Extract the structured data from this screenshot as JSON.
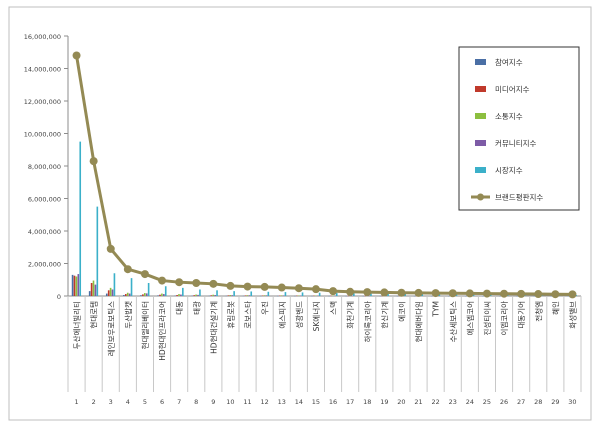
{
  "chart_data": {
    "type": "bar",
    "title": "",
    "xlabel": "",
    "ylabel": "",
    "ylim": [
      0,
      16000000
    ],
    "yticks": [
      0,
      2000000,
      4000000,
      6000000,
      8000000,
      10000000,
      12000000,
      14000000,
      16000000
    ],
    "ytick_labels": [
      "0",
      "2,000,000",
      "4,000,000",
      "6,000,000",
      "8,000,000",
      "10,000,000",
      "12,000,000",
      "14,000,000",
      "16,000,000"
    ],
    "grid": false,
    "legend_position": "top-right",
    "rank_labels": [
      "1",
      "2",
      "3",
      "4",
      "5",
      "6",
      "7",
      "8",
      "9",
      "10",
      "11",
      "12",
      "13",
      "14",
      "15",
      "16",
      "17",
      "18",
      "19",
      "20",
      "21",
      "22",
      "23",
      "24",
      "25",
      "26",
      "27",
      "28",
      "29",
      "30"
    ],
    "categories": [
      "두산에너빌리티",
      "현대로템",
      "레인보우로보틱스",
      "두산밥캣",
      "현대엘리베이터",
      "HD현대인프라코어",
      "대동",
      "태광",
      "HD현대건설기계",
      "휴림로봇",
      "로보스타",
      "우진",
      "에스피지",
      "성광벤드",
      "SK에너지",
      "스맥",
      "화천기계",
      "하이록코리아",
      "한신기계",
      "에코이",
      "현대에버다임",
      "TYM",
      "수산세보틱스",
      "에스엠코어",
      "진성티이씨",
      "이엠코리아",
      "대동기어",
      "전청엠",
      "혜인",
      "화성밸브"
    ],
    "series": [
      {
        "name": "참여지수",
        "kind": "bar",
        "color": "#4a6fa5",
        "values": [
          1300000,
          300000,
          150000,
          60000,
          50000,
          40000,
          30000,
          25000,
          20000,
          18000,
          15000,
          12000,
          10000,
          9000,
          8000,
          7000,
          6000,
          5000,
          5000,
          4000,
          4000,
          3000,
          3000,
          3000,
          2500,
          2500,
          2000,
          2000,
          2000,
          1500
        ]
      },
      {
        "name": "미디어지수",
        "kind": "bar",
        "color": "#c0392b",
        "values": [
          1250000,
          800000,
          350000,
          120000,
          100000,
          80000,
          60000,
          50000,
          45000,
          40000,
          35000,
          30000,
          25000,
          22000,
          20000,
          18000,
          15000,
          13000,
          12000,
          11000,
          10000,
          9000,
          8000,
          7000,
          6000,
          5500,
          5000,
          4500,
          4000,
          3500
        ]
      },
      {
        "name": "소통지수",
        "kind": "bar",
        "color": "#8cbf3f",
        "values": [
          1200000,
          950000,
          500000,
          200000,
          180000,
          150000,
          120000,
          90000,
          80000,
          60000,
          50000,
          45000,
          40000,
          35000,
          30000,
          28000,
          25000,
          22000,
          20000,
          18000,
          15000,
          14000,
          13000,
          12000,
          11000,
          10000,
          9000,
          8000,
          7000,
          6000
        ]
      },
      {
        "name": "커뮤니티지수",
        "kind": "bar",
        "color": "#7d5ba6",
        "values": [
          1350000,
          700000,
          400000,
          150000,
          160000,
          120000,
          90000,
          70000,
          60000,
          50000,
          45000,
          40000,
          35000,
          30000,
          28000,
          25000,
          22000,
          20000,
          18000,
          16000,
          14000,
          12000,
          11000,
          10000,
          9000,
          8000,
          7000,
          6000,
          5500,
          5000
        ]
      },
      {
        "name": "시장지수",
        "kind": "bar",
        "color": "#3bb0c9",
        "values": [
          9500000,
          5500000,
          1400000,
          1100000,
          800000,
          600000,
          500000,
          400000,
          350000,
          300000,
          280000,
          260000,
          240000,
          220000,
          200000,
          180000,
          160000,
          150000,
          140000,
          130000,
          120000,
          110000,
          100000,
          90000,
          85000,
          80000,
          75000,
          70000,
          65000,
          60000
        ]
      },
      {
        "name": "브랜드평판지수",
        "kind": "line",
        "color": "#948a54",
        "values": [
          14800000,
          8300000,
          2900000,
          1650000,
          1350000,
          950000,
          850000,
          800000,
          750000,
          620000,
          580000,
          560000,
          520000,
          480000,
          420000,
          300000,
          260000,
          240000,
          220000,
          200000,
          190000,
          180000,
          170000,
          160000,
          150000,
          140000,
          130000,
          120000,
          110000,
          100000
        ]
      }
    ]
  }
}
